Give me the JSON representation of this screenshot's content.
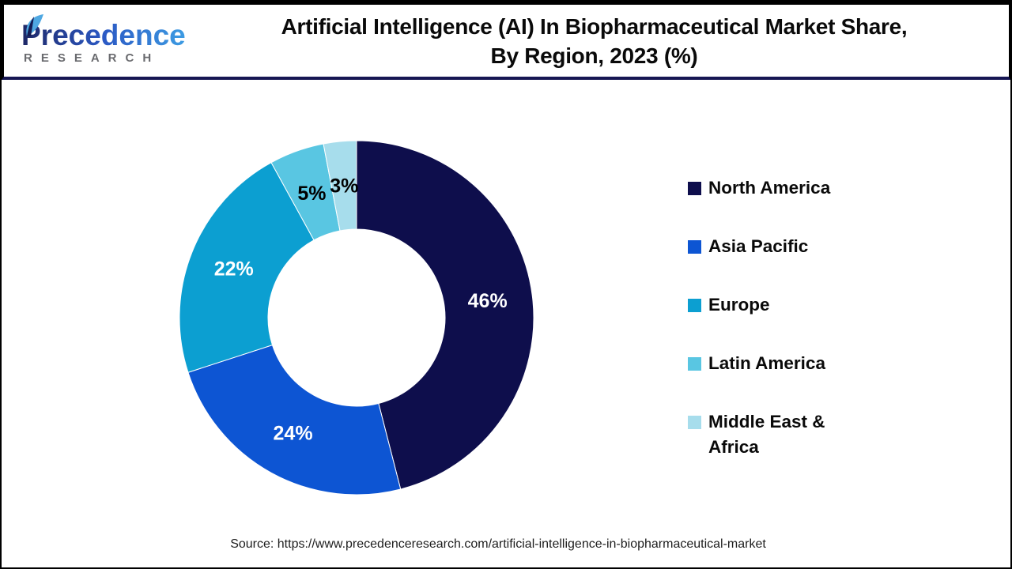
{
  "header": {
    "logo": {
      "brand": "Precedence",
      "sub": "RESEARCH"
    },
    "title_line1": "Artificial Intelligence (AI) In Biopharmaceutical Market Share,",
    "title_line2": "By Region, 2023 (%)"
  },
  "chart_data": {
    "type": "pie",
    "subtype": "donut",
    "title": "Artificial Intelligence (AI) In Biopharmaceutical Market Share, By Region, 2023 (%)",
    "units": "%",
    "start_angle": "12 o'clock",
    "direction": "clockwise",
    "inner_radius_ratio": 0.5,
    "legend_position": "right",
    "series": [
      {
        "name": "North America",
        "value": 46,
        "label": "46%",
        "color": "#0E0E4C",
        "label_color": "#ffffff"
      },
      {
        "name": "Asia Pacific",
        "value": 24,
        "label": "24%",
        "color": "#0D55D3",
        "label_color": "#ffffff"
      },
      {
        "name": "Europe",
        "value": 22,
        "label": "22%",
        "color": "#0C9FD1",
        "label_color": "#ffffff"
      },
      {
        "name": "Latin America",
        "value": 5,
        "label": "5%",
        "color": "#59C6E2",
        "label_color": "#000000"
      },
      {
        "name": "Middle East & Africa",
        "value": 3,
        "label": "3%",
        "color": "#A7DDEC",
        "label_color": "#000000"
      }
    ]
  },
  "footer": {
    "source": "Source: https://www.precedenceresearch.com/artificial-intelligence-in-biopharmaceutical-market"
  },
  "colors": {
    "header_rule": "#161653",
    "frame": "#000000",
    "brand_gradient_start": "#1E2766",
    "brand_gradient_end": "#3D9CE3",
    "brand_sub_gray": "#6a6b6f"
  }
}
